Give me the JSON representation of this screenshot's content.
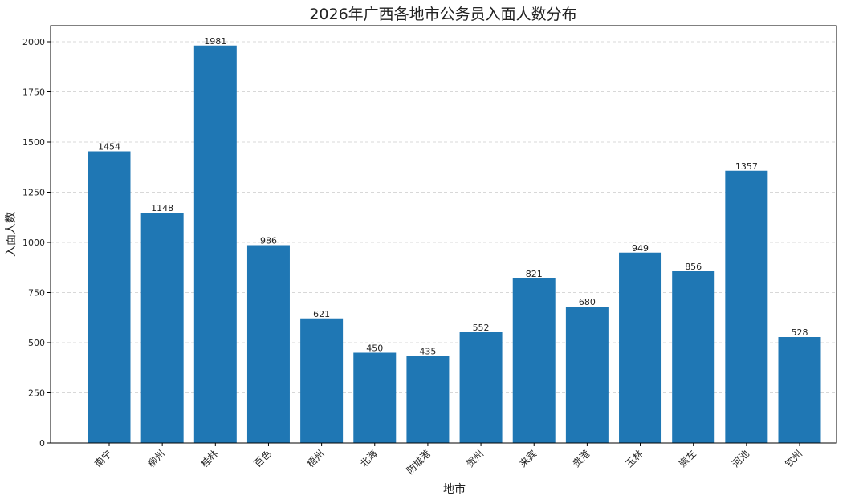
{
  "chart_data": {
    "type": "bar",
    "title": "2026年广西各地市公务员入面人数分布",
    "xlabel": "地市",
    "ylabel": "入面人数",
    "categories": [
      "南宁",
      "柳州",
      "桂林",
      "百色",
      "梧州",
      "北海",
      "防城港",
      "贺州",
      "来宾",
      "贵港",
      "玉林",
      "崇左",
      "河池",
      "钦州"
    ],
    "values": [
      1454,
      1148,
      1981,
      986,
      621,
      450,
      435,
      552,
      821,
      680,
      949,
      856,
      1357,
      528
    ],
    "ylim": [
      0,
      2080
    ],
    "yticks": [
      0,
      250,
      500,
      750,
      1000,
      1250,
      1500,
      1750,
      2000
    ],
    "grid": "y dashed",
    "bar_color": "#1f77b4",
    "data_labels": true
  }
}
